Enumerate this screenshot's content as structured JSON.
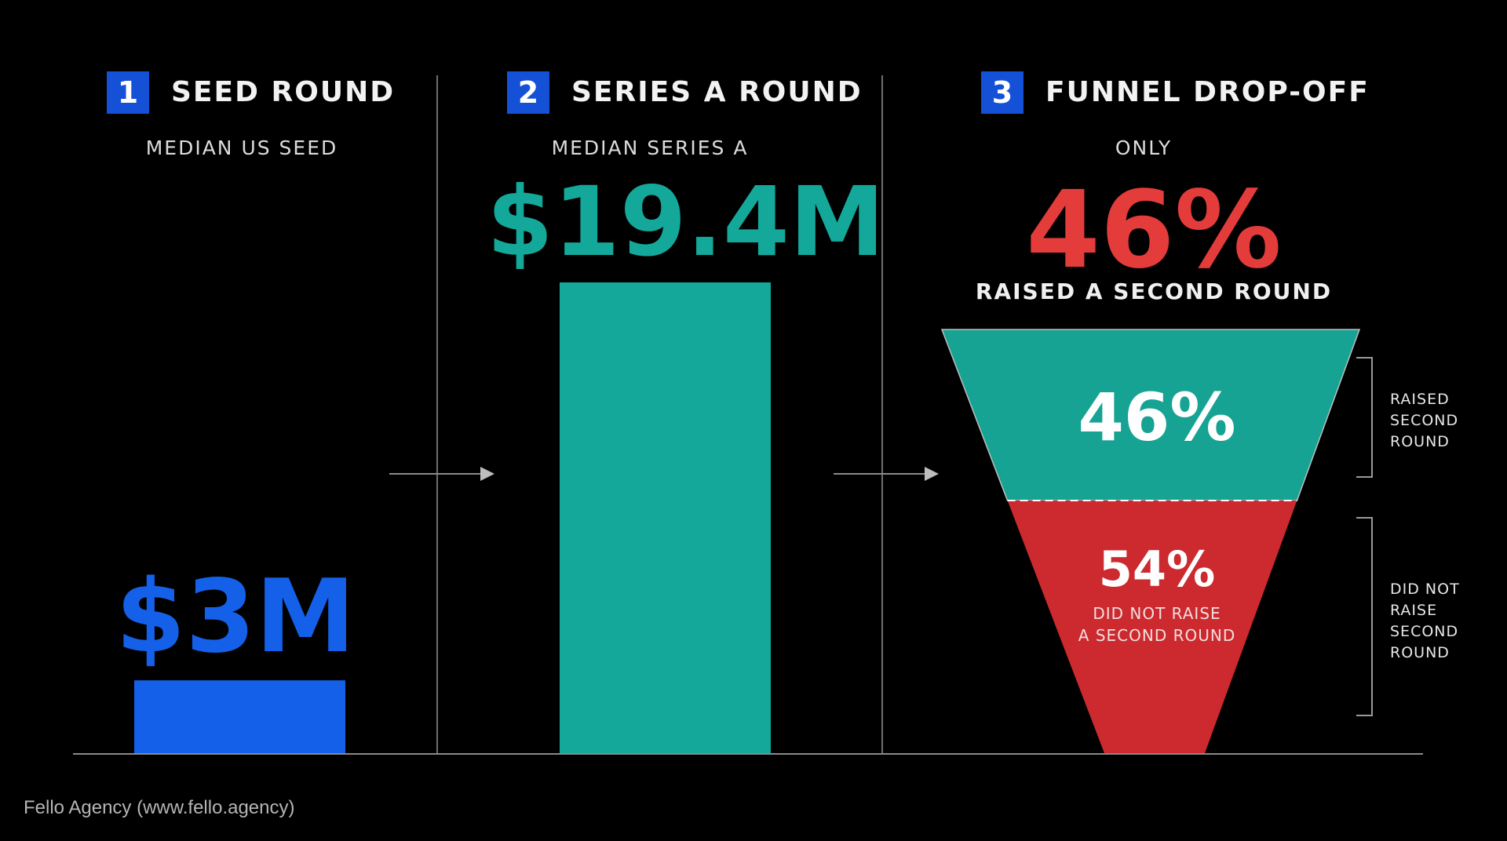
{
  "sections": [
    {
      "number": "1",
      "title": "SEED ROUND",
      "subtitle": "MEDIAN US SEED",
      "value_label": "$3M"
    },
    {
      "number": "2",
      "title": "SERIES A ROUND",
      "subtitle": "MEDIAN SERIES A",
      "value_label": "$19.4M"
    },
    {
      "number": "3",
      "title": "FUNNEL DROP-OFF",
      "subtitle": "ONLY",
      "value_label": "46%",
      "caption": "RAISED A SECOND ROUND"
    }
  ],
  "funnel": {
    "top": {
      "value_label": "46%",
      "side_label": "RAISED\nSECOND\nROUND"
    },
    "bottom": {
      "value_label": "54%",
      "inner_label_1": "DID NOT RAISE",
      "inner_label_2": "A SECOND ROUND",
      "side_label": "DID NOT RAISE\nSECOND\nROUND"
    }
  },
  "footer": "Fello Agency (www.fello.agency)",
  "colors": {
    "seed": "#1460e8",
    "series_a": "#14a89a",
    "raised": "#16a393",
    "not_raised": "#cc2a2e",
    "highlight_red": "#e43b3b",
    "box_blue": "#1451d6"
  },
  "chart_data": [
    {
      "type": "bar",
      "categories": [
        "SEED ROUND",
        "SERIES A ROUND"
      ],
      "values": [
        3,
        19.4
      ],
      "data_labels": [
        "$3M",
        "$19.4M"
      ]
    },
    {
      "type": "pie",
      "categories": [
        "RAISED SECOND ROUND",
        "DID NOT RAISE SECOND ROUND"
      ],
      "values": [
        46,
        54
      ],
      "data_labels": [
        "46%",
        "54%"
      ]
    }
  ]
}
